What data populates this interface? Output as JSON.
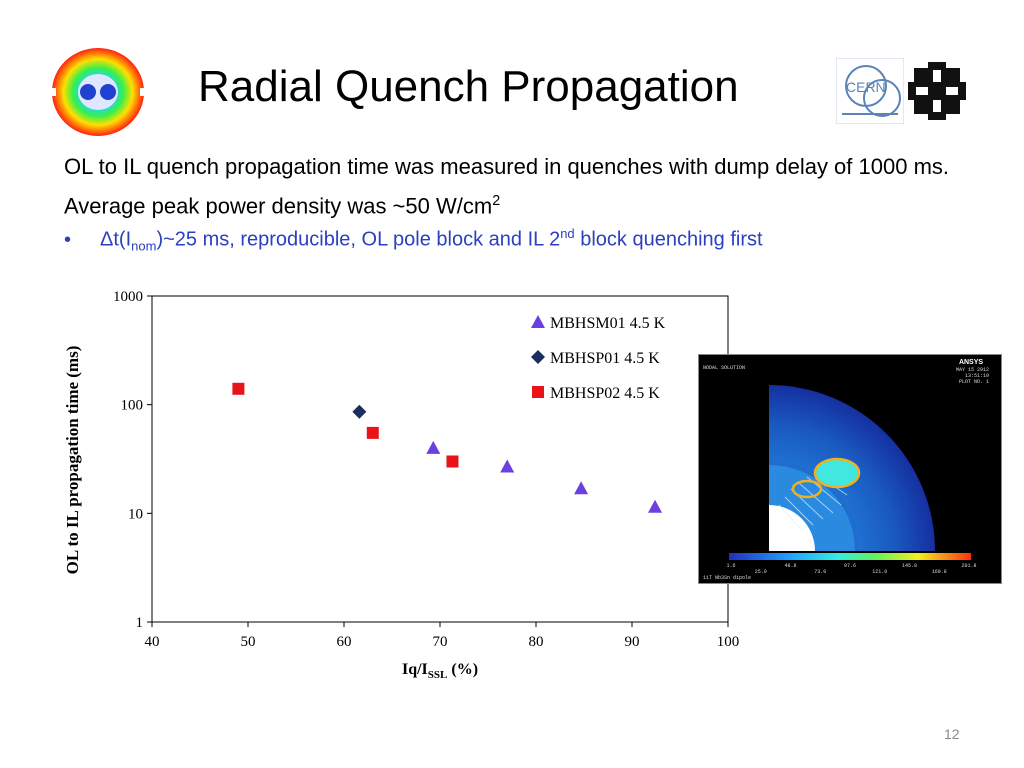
{
  "slide": {
    "title": "Radial Quench Propagation",
    "intro_main": "OL to IL quench propagation time was measured in quenches with dump delay of 1000 ms. Average peak power density was ~50 W/cm",
    "intro_sup": "2",
    "bullet": {
      "marker": "•",
      "part1": "Δt(I",
      "sub": "nom",
      "part2": ")~25 ms, reproducible, OL pole block and IL 2",
      "sup": "nd",
      "part3": " block quenching first"
    },
    "page_number": "12"
  },
  "logos": {
    "cern_text": "CERN"
  },
  "colors": {
    "bullet_text": "#2b3fc0",
    "triangle": "#6b3fe0",
    "diamond": "#1a2f5e",
    "square": "#e8141a"
  },
  "chart_data": {
    "type": "scatter",
    "title": "",
    "xlabel_main": "Iq/I",
    "xlabel_sub": "SSL",
    "xlabel_tail": " (%)",
    "ylabel": "OL to IL propagation time (ms)",
    "xlim": [
      40,
      100
    ],
    "ylim": [
      1,
      1000
    ],
    "y_scale": "log",
    "x_ticks": [
      "40",
      "50",
      "60",
      "70",
      "80",
      "90",
      "100"
    ],
    "y_ticks": [
      "1",
      "10",
      "100",
      "1000"
    ],
    "grid": false,
    "legend_position": "top-right",
    "series": [
      {
        "name": "MBHSM01 4.5 K",
        "marker": "triangle",
        "points": [
          [
            69.3,
            40
          ],
          [
            77,
            27
          ],
          [
            84.7,
            17
          ],
          [
            92.4,
            11.5
          ]
        ]
      },
      {
        "name": "MBHSP01 4.5 K",
        "marker": "diamond",
        "points": [
          [
            61.6,
            86
          ]
        ]
      },
      {
        "name": "MBHSP02 4.5 K",
        "marker": "square",
        "points": [
          [
            49,
            140
          ],
          [
            63,
            55
          ],
          [
            71.3,
            30
          ]
        ]
      }
    ]
  },
  "ansys_image": {
    "brand": "ANSYS",
    "header_left": "NODAL SOLUTION",
    "header_right_date": "MAY 15 2012",
    "header_right_time": "13:51:10",
    "plot_no": "PLOT NO.   1",
    "colorbar_labels": [
      "1.6",
      "25.0",
      "48.8",
      "73.0",
      "97.6",
      "121.0",
      "145.8",
      "169.8",
      "201.8"
    ],
    "footer": "11T Nb3Sn dipole"
  }
}
